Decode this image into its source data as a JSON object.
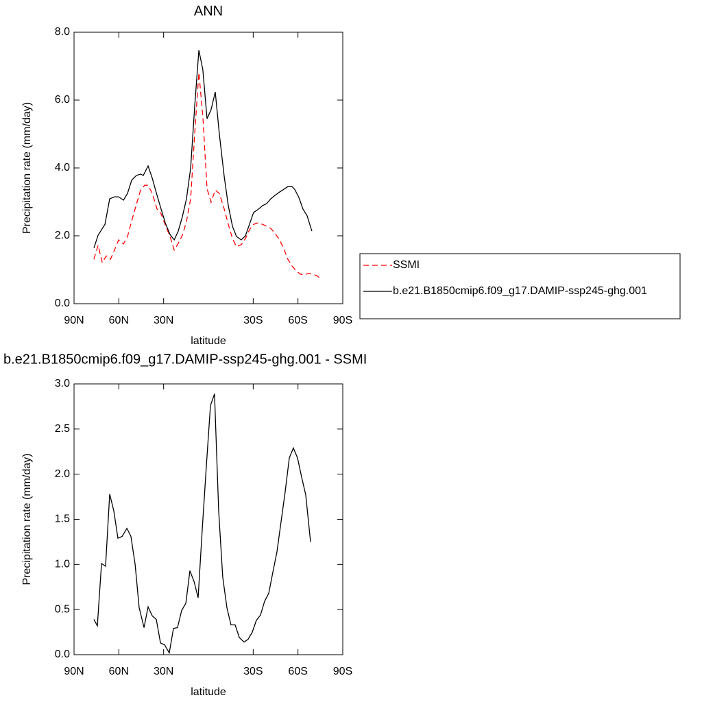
{
  "chart_data": [
    {
      "type": "line",
      "title": "ANN",
      "x_label": "latitude",
      "y_label": "Precipitation rate (mm/day)",
      "xlim": [
        90,
        -90
      ],
      "xticks": [
        {
          "value": 90,
          "label": "90N"
        },
        {
          "value": 60,
          "label": "60N"
        },
        {
          "value": 30,
          "label": "30N"
        },
        {
          "value": -30,
          "label": "30S"
        },
        {
          "value": -60,
          "label": "60S"
        },
        {
          "value": -90,
          "label": "90S"
        }
      ],
      "ylim": [
        0,
        8
      ],
      "yticks": [
        {
          "value": 0,
          "label": "0.0"
        },
        {
          "value": 2,
          "label": "2.0"
        },
        {
          "value": 4,
          "label": "4.0"
        },
        {
          "value": 6,
          "label": "6.0"
        },
        {
          "value": 8,
          "label": "8.0"
        }
      ],
      "legend": "right",
      "series": [
        {
          "name": "SSMI",
          "color": "#ff0000",
          "style": "dashed",
          "x": [
            76.7,
            73.9,
            71.1,
            68.4,
            65.6,
            62.9,
            60.1,
            56.9,
            54.2,
            51.4,
            48.2,
            45.4,
            42.7,
            40.4,
            37.6,
            34.4,
            31.7,
            28.9,
            25.7,
            22.9,
            20.2,
            17.4,
            14.7,
            11.9,
            9.2,
            6.4,
            3.7,
            0.9,
            -1.8,
            -4.6,
            -7.3,
            -10.6,
            -13.3,
            -16.1,
            -18.8,
            -22.0,
            -24.8,
            -27.5,
            -30.3,
            -33.0,
            -36.3,
            -39.0,
            -41.8,
            -44.5,
            -47.7,
            -50.5,
            -53.2,
            -56.0,
            -58.8,
            -61.5,
            -64.3,
            -67.0,
            -69.8,
            -72.5,
            -74.8
          ],
          "values": [
            1.31,
            1.72,
            1.21,
            1.41,
            1.31,
            1.58,
            1.88,
            1.76,
            1.98,
            2.44,
            2.93,
            3.35,
            3.49,
            3.49,
            3.25,
            2.79,
            2.65,
            2.32,
            1.98,
            1.58,
            1.78,
            2.02,
            2.42,
            3.09,
            5.01,
            6.81,
            5.52,
            3.39,
            2.99,
            3.35,
            3.25,
            2.79,
            2.34,
            1.92,
            1.68,
            1.74,
            1.92,
            2.18,
            2.34,
            2.38,
            2.34,
            2.28,
            2.22,
            2.08,
            1.88,
            1.62,
            1.31,
            1.11,
            0.97,
            0.87,
            0.85,
            0.89,
            0.87,
            0.83,
            0.75
          ]
        },
        {
          "name": "b.e21.B1850cmip6.f09_g17.DAMIP-ssp245-ghg.001",
          "color": "#000000",
          "style": "solid",
          "x": [
            76.7,
            73.9,
            69.3,
            66.1,
            62.9,
            60.1,
            56.9,
            54.2,
            51.4,
            48.2,
            45.4,
            43.6,
            40.4,
            37.6,
            34.4,
            31.7,
            28.9,
            25.7,
            22.9,
            20.2,
            17.4,
            14.7,
            11.9,
            9.2,
            6.4,
            3.7,
            0.9,
            -1.8,
            -4.6,
            -7.3,
            -10.6,
            -13.3,
            -16.1,
            -18.8,
            -22.0,
            -24.8,
            -27.5,
            -30.3,
            -33.0,
            -36.3,
            -39.0,
            -41.8,
            -44.5,
            -47.7,
            -50.5,
            -53.2,
            -56.0,
            -57.8,
            -60.6,
            -63.3,
            -66.1,
            -69.3
          ],
          "values": [
            1.64,
            2.02,
            2.34,
            3.09,
            3.15,
            3.15,
            3.05,
            3.25,
            3.64,
            3.78,
            3.82,
            3.78,
            4.06,
            3.7,
            3.19,
            2.79,
            2.38,
            2.04,
            1.88,
            2.14,
            2.57,
            3.09,
            4.0,
            5.82,
            7.47,
            6.89,
            5.45,
            5.72,
            6.24,
            5.01,
            3.74,
            2.89,
            2.28,
            1.98,
            1.88,
            2.0,
            2.34,
            2.69,
            2.77,
            2.89,
            2.95,
            3.09,
            3.19,
            3.29,
            3.37,
            3.45,
            3.45,
            3.37,
            3.13,
            2.79,
            2.59,
            2.14
          ]
        }
      ]
    },
    {
      "type": "line",
      "title": "b.e21.B1850cmip6.f09_g17.DAMIP-ssp245-ghg.001 - SSMI",
      "x_label": "latitude",
      "y_label": "Precipitation rate (mm/day)",
      "xlim": [
        90,
        -90
      ],
      "xticks": [
        {
          "value": 90,
          "label": "90N"
        },
        {
          "value": 60,
          "label": "60N"
        },
        {
          "value": 30,
          "label": "30N"
        },
        {
          "value": -30,
          "label": "30S"
        },
        {
          "value": -60,
          "label": "60S"
        },
        {
          "value": -90,
          "label": "90S"
        }
      ],
      "ylim": [
        0,
        3
      ],
      "yticks": [
        {
          "value": 0,
          "label": "0.0"
        },
        {
          "value": 0.5,
          "label": "0.5"
        },
        {
          "value": 1,
          "label": "1.0"
        },
        {
          "value": 1.5,
          "label": "1.5"
        },
        {
          "value": 2,
          "label": "2.0"
        },
        {
          "value": 2.5,
          "label": "2.5"
        },
        {
          "value": 3,
          "label": "3.0"
        }
      ],
      "series": [
        {
          "color": "#000000",
          "style": "solid",
          "x": [
            76.7,
            74.4,
            71.6,
            68.9,
            66.1,
            63.3,
            60.6,
            57.8,
            54.6,
            51.9,
            49.1,
            46.4,
            43.1,
            40.4,
            37.6,
            34.9,
            32.1,
            29.4,
            26.2,
            23.4,
            20.7,
            17.9,
            15.1,
            12.4,
            9.6,
            6.9,
            4.1,
            1.4,
            -1.4,
            -4.1,
            -6.9,
            -9.6,
            -12.4,
            -15.1,
            -17.9,
            -20.7,
            -23.9,
            -26.6,
            -29.4,
            -32.1,
            -34.9,
            -37.6,
            -40.4,
            -43.1,
            -45.9,
            -48.7,
            -51.4,
            -54.2,
            -56.9,
            -59.7,
            -62.4,
            -65.2,
            -68.4
          ],
          "values": [
            0.39,
            0.32,
            1.01,
            0.98,
            1.78,
            1.59,
            1.29,
            1.31,
            1.4,
            1.31,
            1.0,
            0.52,
            0.3,
            0.53,
            0.43,
            0.39,
            0.13,
            0.11,
            0.02,
            0.29,
            0.3,
            0.49,
            0.57,
            0.93,
            0.81,
            0.63,
            1.4,
            2.09,
            2.76,
            2.89,
            1.59,
            0.86,
            0.52,
            0.33,
            0.33,
            0.19,
            0.14,
            0.17,
            0.25,
            0.38,
            0.44,
            0.59,
            0.68,
            0.91,
            1.14,
            1.48,
            1.8,
            2.18,
            2.29,
            2.18,
            1.97,
            1.77,
            1.25
          ]
        }
      ]
    }
  ]
}
